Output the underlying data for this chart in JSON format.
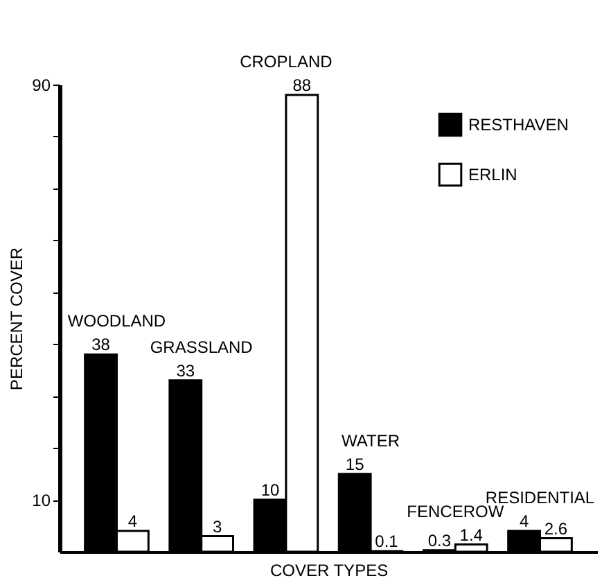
{
  "chart_data": {
    "type": "bar",
    "xlabel": "COVER TYPES",
    "ylabel": "PERCENT COVER",
    "categories": [
      "WOODLAND",
      "GRASSLAND",
      "CROPLAND",
      "WATER",
      "FENCEROW",
      "RESIDENTIAL"
    ],
    "series": [
      {
        "name": "RESTHAVEN",
        "color": "#000000",
        "values": [
          38,
          33,
          10,
          15,
          0.3,
          4
        ]
      },
      {
        "name": "ERLIN",
        "color": "#ffffff",
        "values": [
          4,
          3,
          88,
          0.1,
          1.4,
          2.6
        ]
      }
    ],
    "ylim": [
      0,
      90
    ],
    "yticks": [
      10,
      {
        "value": 20,
        "label": null
      },
      {
        "value": 30,
        "label": null
      },
      {
        "value": 40,
        "label": null
      },
      {
        "value": 50,
        "label": null
      },
      {
        "value": 60,
        "label": null
      },
      {
        "value": 70,
        "label": null
      },
      {
        "value": 80,
        "label": null
      },
      90
    ],
    "data_labels": true,
    "grid": false,
    "legend": "top right"
  }
}
